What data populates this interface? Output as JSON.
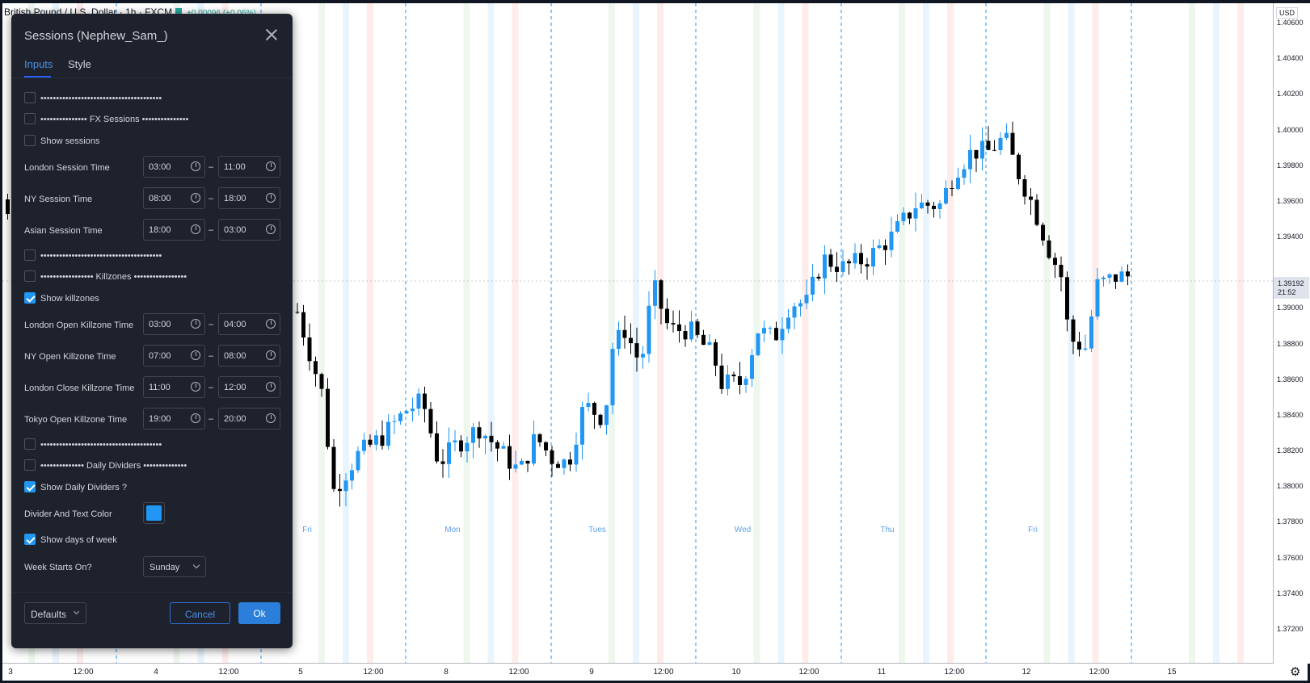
{
  "chart": {
    "symbol_title": "British Pound / U.S. Dollar · 1h · FXCM",
    "symbol_change": "+0.00096 (+0.06%)",
    "currency": "USD",
    "last_price": "1.39192",
    "countdown": "21:52",
    "price_labels": [
      "1.40600",
      "1.40400",
      "1.40200",
      "1.40000",
      "1.39800",
      "1.39600",
      "1.39400",
      "1.39000",
      "1.38800",
      "1.38600",
      "1.38400",
      "1.38200",
      "1.38000",
      "1.37800",
      "1.37600",
      "1.37400",
      "1.37200"
    ],
    "time_labels": [
      "3",
      "12:00",
      "4",
      "12:00",
      "5",
      "12:00",
      "8",
      "12:00",
      "9",
      "12:00",
      "10",
      "12:00",
      "11",
      "12:00",
      "12",
      "12:00",
      "15"
    ],
    "day_labels": [
      "Fri",
      "Mon",
      "Tues",
      "Wed",
      "Thu",
      "Fri"
    ],
    "colors": {
      "up": "#2196f3",
      "down": "#000000",
      "divider": "#2196f3",
      "london": "#4caf50",
      "ny": "#2196f3",
      "asia": "#f44336"
    }
  },
  "dialog": {
    "title": "Sessions (Nephew_Sam_)",
    "tabs": [
      {
        "label": "Inputs",
        "active": true
      },
      {
        "label": "Style",
        "active": false
      }
    ],
    "sep_1": "•••••••••••••••••••••••••••••••••••••••",
    "fx_sessions": "••••••••••••••• FX Sessions •••••••••••••••",
    "show_sessions": "Show sessions",
    "london_session": {
      "label": "London Session Time",
      "start": "03:00",
      "end": "11:00"
    },
    "ny_session": {
      "label": "NY Session Time",
      "start": "08:00",
      "end": "18:00"
    },
    "asian_session": {
      "label": "Asian Session Time",
      "start": "18:00",
      "end": "03:00"
    },
    "sep_2": "•••••••••••••••••••••••••••••••••••••••",
    "killzones": "••••••••••••••••• Killzones •••••••••••••••••",
    "show_killzones": "Show killzones",
    "london_open_kz": {
      "label": "London Open Killzone Time",
      "start": "03:00",
      "end": "04:00"
    },
    "ny_open_kz": {
      "label": "NY Open Killzone Time",
      "start": "07:00",
      "end": "08:00"
    },
    "london_close_kz": {
      "label": "London Close Killzone Time",
      "start": "11:00",
      "end": "12:00"
    },
    "tokyo_open_kz": {
      "label": "Tokyo Open Killzone Time",
      "start": "19:00",
      "end": "20:00"
    },
    "sep_3": "•••••••••••••••••••••••••••••••••••••••",
    "daily_dividers": "•••••••••••••• Daily Dividers ••••••••••••••",
    "show_daily_dividers": "Show Daily Dividers ?",
    "divider_color_label": "Divider And Text Color",
    "divider_color": "#2196f3",
    "show_days_of_week": "Show days of week",
    "week_starts_label": "Week Starts On?",
    "week_starts_value": "Sunday",
    "dash": "–",
    "defaults_label": "Defaults",
    "cancel_label": "Cancel",
    "ok_label": "Ok"
  }
}
